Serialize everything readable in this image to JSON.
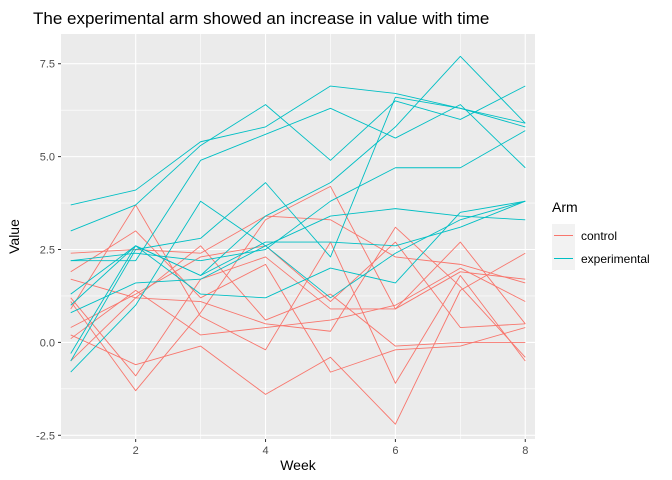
{
  "chart_data": {
    "type": "line",
    "title": "The experimental arm showed an increase in value with time",
    "xlabel": "Week",
    "ylabel": "Value",
    "xlim": [
      0.85,
      8.15
    ],
    "ylim": [
      -2.6,
      8.3
    ],
    "x_ticks": [
      2,
      4,
      6,
      8
    ],
    "y_ticks": [
      -2.5,
      0.0,
      2.5,
      5.0,
      7.5
    ],
    "x_tick_labels": [
      "2",
      "4",
      "6",
      "8"
    ],
    "y_tick_labels": [
      "-2.5",
      "0.0",
      "2.5",
      "5.0",
      "7.5"
    ],
    "grid": true,
    "legend": {
      "title": "Arm",
      "placement": "right",
      "entries": [
        {
          "label": "control",
          "color": "#F8766D"
        },
        {
          "label": "experimental",
          "color": "#00BFC4"
        }
      ]
    },
    "x": [
      1,
      2,
      3,
      4,
      5,
      6,
      7,
      8
    ],
    "series": [
      {
        "group": "control",
        "color": "#F8766D",
        "values": [
          0.2,
          -0.6,
          -0.1,
          -1.4,
          -0.4,
          -2.2,
          1.4,
          2.4
        ]
      },
      {
        "group": "control",
        "color": "#F8766D",
        "values": [
          1.1,
          -1.3,
          0.8,
          3.3,
          4.2,
          0.9,
          1.9,
          1.7
        ]
      },
      {
        "group": "control",
        "color": "#F8766D",
        "values": [
          2.4,
          2.5,
          2.4,
          3.4,
          3.3,
          2.3,
          2.1,
          1.6
        ]
      },
      {
        "group": "control",
        "color": "#F8766D",
        "values": [
          0.1,
          1.4,
          0.2,
          0.4,
          0.6,
          1.0,
          2.0,
          1.1
        ]
      },
      {
        "group": "control",
        "color": "#F8766D",
        "values": [
          1.9,
          3.0,
          1.2,
          2.1,
          -0.8,
          -0.2,
          -0.1,
          0.4
        ]
      },
      {
        "group": "control",
        "color": "#F8766D",
        "values": [
          0.4,
          1.3,
          2.3,
          2.6,
          1.1,
          2.7,
          0.4,
          0.5
        ]
      },
      {
        "group": "control",
        "color": "#F8766D",
        "values": [
          -0.5,
          1.2,
          1.1,
          0.5,
          0.3,
          3.1,
          1.5,
          -0.4
        ]
      },
      {
        "group": "control",
        "color": "#F8766D",
        "values": [
          0.9,
          3.7,
          0.7,
          -0.2,
          2.7,
          -1.1,
          1.8,
          -0.5
        ]
      },
      {
        "group": "control",
        "color": "#F8766D",
        "values": [
          1.2,
          -0.9,
          1.7,
          2.3,
          0.9,
          0.9,
          2.7,
          0.5
        ]
      },
      {
        "group": "control",
        "color": "#F8766D",
        "values": [
          1.7,
          1.2,
          2.6,
          0.6,
          1.3,
          -0.1,
          0.0,
          0.0
        ]
      },
      {
        "group": "experimental",
        "color": "#00BFC4",
        "values": [
          3.7,
          4.1,
          5.4,
          5.8,
          6.9,
          6.7,
          6.3,
          5.8
        ]
      },
      {
        "group": "experimental",
        "color": "#00BFC4",
        "values": [
          3.0,
          3.7,
          5.3,
          6.4,
          4.9,
          6.5,
          6.0,
          6.9
        ]
      },
      {
        "group": "experimental",
        "color": "#00BFC4",
        "values": [
          2.2,
          2.4,
          2.2,
          2.5,
          3.8,
          4.7,
          4.7,
          5.7
        ]
      },
      {
        "group": "experimental",
        "color": "#00BFC4",
        "values": [
          1.3,
          2.6,
          1.8,
          3.4,
          4.3,
          5.8,
          7.7,
          5.9
        ]
      },
      {
        "group": "experimental",
        "color": "#00BFC4",
        "values": [
          -0.8,
          1.0,
          3.8,
          2.6,
          3.4,
          3.6,
          3.4,
          3.3
        ]
      },
      {
        "group": "experimental",
        "color": "#00BFC4",
        "values": [
          1.0,
          2.6,
          1.3,
          1.2,
          2.0,
          1.6,
          3.5,
          3.8
        ]
      },
      {
        "group": "experimental",
        "color": "#00BFC4",
        "values": [
          -0.5,
          2.5,
          2.8,
          4.3,
          2.3,
          6.6,
          6.3,
          5.9
        ]
      },
      {
        "group": "experimental",
        "color": "#00BFC4",
        "values": [
          -0.3,
          2.6,
          1.8,
          2.7,
          2.7,
          2.6,
          3.1,
          3.8
        ]
      },
      {
        "group": "experimental",
        "color": "#00BFC4",
        "values": [
          2.2,
          2.2,
          4.9,
          5.6,
          6.3,
          5.5,
          6.4,
          4.7
        ]
      },
      {
        "group": "experimental",
        "color": "#00BFC4",
        "values": [
          0.8,
          1.6,
          1.7,
          2.6,
          1.2,
          2.4,
          3.3,
          3.8
        ]
      }
    ]
  }
}
